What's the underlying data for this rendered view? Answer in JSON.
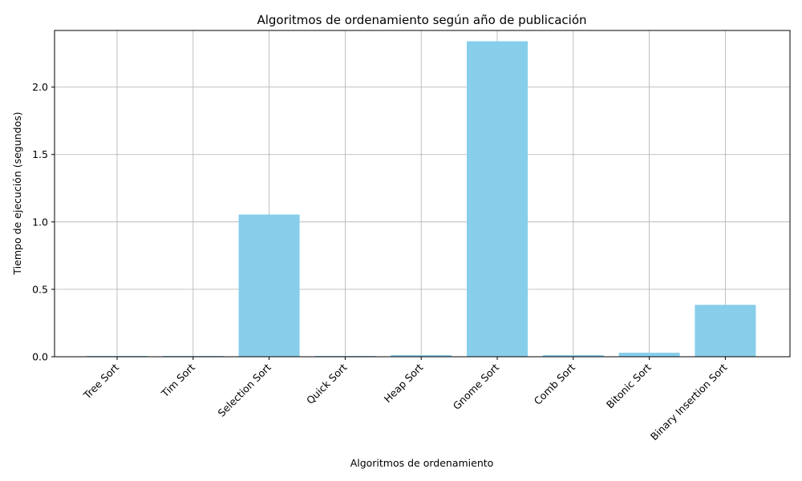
{
  "chart_data": {
    "type": "bar",
    "title": "Algoritmos de ordenamiento según año de publicación",
    "xlabel": "Algoritmos de ordenamiento",
    "ylabel": "Tiempo de ejecución (segundos)",
    "categories": [
      "Tree Sort",
      "Tim Sort",
      "Selection Sort",
      "Quick Sort",
      "Heap Sort",
      "Gnome Sort",
      "Comb Sort",
      "Bitonic Sort",
      "Binary Insertion Sort"
    ],
    "values": [
      0.003,
      0.002,
      1.055,
      0.002,
      0.012,
      2.34,
      0.012,
      0.03,
      0.385
    ],
    "ylim": [
      0,
      2.42
    ],
    "yticks": [
      0.0,
      0.5,
      1.0,
      1.5,
      2.0
    ],
    "ytick_labels": [
      "0.0",
      "0.5",
      "1.0",
      "1.5",
      "2.0"
    ],
    "grid": true,
    "bar_color": "#87CEEB",
    "grid_color": "#b0b0b0"
  }
}
